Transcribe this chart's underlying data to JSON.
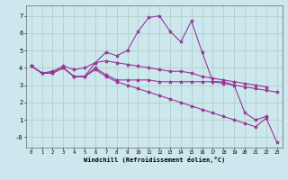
{
  "background_color": "#cce8ee",
  "grid_color": "#aaccbb",
  "line_color": "#993399",
  "marker": "*",
  "marker_size": 3,
  "linewidth": 0.8,
  "xlim": [
    -0.5,
    23.5
  ],
  "ylim": [
    -0.6,
    7.6
  ],
  "yticks": [
    0,
    1,
    2,
    3,
    4,
    5,
    6,
    7
  ],
  "ytick_labels": [
    "-0",
    "1",
    "2",
    "3",
    "4",
    "5",
    "6",
    "7"
  ],
  "xtick_labels": [
    "0",
    "1",
    "2",
    "3",
    "4",
    "5",
    "6",
    "7",
    "8",
    "9",
    "10",
    "11",
    "12",
    "13",
    "14",
    "15",
    "16",
    "17",
    "18",
    "19",
    "20",
    "21",
    "22",
    "23"
  ],
  "xlabel": "Windchill (Refroidissement éolien,°C)",
  "series1_x": [
    0,
    1,
    2,
    3,
    4,
    5,
    6,
    7,
    8,
    9,
    10,
    11,
    12,
    13,
    14,
    15,
    16,
    17,
    18,
    19,
    20,
    21,
    22
  ],
  "series1_y": [
    4.1,
    3.7,
    3.7,
    4.0,
    3.5,
    3.5,
    4.3,
    4.9,
    4.7,
    5.0,
    6.1,
    6.9,
    7.0,
    6.1,
    5.5,
    6.7,
    4.9,
    3.2,
    3.2,
    3.0,
    1.4,
    1.0,
    1.2
  ],
  "series2_x": [
    0,
    1,
    2,
    3,
    4,
    5,
    6,
    7,
    8,
    9,
    10,
    11,
    12,
    13,
    14,
    15,
    16,
    17,
    18,
    19,
    20,
    21,
    22
  ],
  "series2_y": [
    4.1,
    3.7,
    3.8,
    4.1,
    3.9,
    4.0,
    4.3,
    4.4,
    4.3,
    4.2,
    4.1,
    4.0,
    3.9,
    3.8,
    3.8,
    3.7,
    3.5,
    3.4,
    3.3,
    3.2,
    3.1,
    3.0,
    2.9
  ],
  "series3_x": [
    0,
    1,
    2,
    3,
    4,
    5,
    6,
    7,
    8,
    9,
    10,
    11,
    12,
    13,
    14,
    15,
    16,
    17,
    18,
    19,
    20,
    21,
    22,
    23
  ],
  "series3_y": [
    4.1,
    3.7,
    3.7,
    4.0,
    3.5,
    3.5,
    4.0,
    3.6,
    3.3,
    3.3,
    3.3,
    3.3,
    3.2,
    3.2,
    3.2,
    3.2,
    3.2,
    3.2,
    3.1,
    3.0,
    2.9,
    2.8,
    2.7,
    2.6
  ],
  "series4_x": [
    0,
    1,
    2,
    3,
    4,
    5,
    6,
    7,
    8,
    9,
    10,
    11,
    12,
    13,
    14,
    15,
    16,
    17,
    18,
    19,
    20,
    21,
    22,
    23
  ],
  "series4_y": [
    4.1,
    3.7,
    3.7,
    4.0,
    3.5,
    3.5,
    3.9,
    3.5,
    3.2,
    3.0,
    2.8,
    2.6,
    2.4,
    2.2,
    2.0,
    1.8,
    1.6,
    1.4,
    1.2,
    1.0,
    0.8,
    0.6,
    1.1,
    -0.3
  ]
}
